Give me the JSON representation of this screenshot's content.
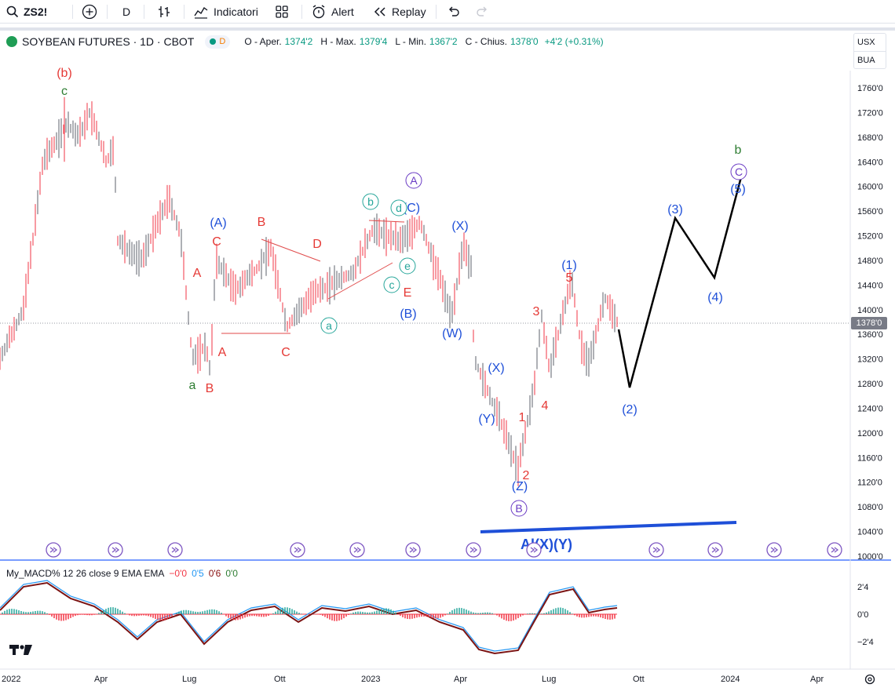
{
  "toolbar": {
    "symbol": "ZS2!",
    "interval": "D",
    "indicators": "Indicatori",
    "alert": "Alert",
    "replay": "Replay"
  },
  "legend": {
    "title": "SOYBEAN FUTURES · 1D · CBOT",
    "badge": "D",
    "o_label": "O - Aper.",
    "o": "1374'2",
    "h_label": "H - Max.",
    "h": "1379'4",
    "l_label": "L - Min.",
    "l": "1367'2",
    "c_label": "C - Chius.",
    "c": "1378'0",
    "change": "+4'2 (+0.31%)"
  },
  "unit": {
    "currency": "USX",
    "unit": "BUA"
  },
  "last_price": "1378'0",
  "price_axis": [
    "1760'0",
    "1720'0",
    "1680'0",
    "1640'0",
    "1600'0",
    "1560'0",
    "1520'0",
    "1480'0",
    "1440'0",
    "1400'0",
    "1360'0",
    "1320'0",
    "1280'0",
    "1240'0",
    "1200'0",
    "1160'0",
    "1120'0",
    "1080'0",
    "1040'0",
    "1000'0"
  ],
  "macd_axis": [
    "2'4",
    "0'0",
    "−2'4"
  ],
  "time_axis": [
    "2022",
    "Apr",
    "Lug",
    "Ott",
    "2023",
    "Apr",
    "Lug",
    "Ott",
    "2024",
    "Apr"
  ],
  "macd": {
    "name": "My_MACD% 12 26 close 9 EMA EMA",
    "v1": "−0'0",
    "v2": "0'5",
    "v3": "0'6",
    "v4": "0'0"
  },
  "colors": {
    "up": "#089981",
    "down": "#f23645",
    "bar": "#5d606b",
    "green": "#2e7d32",
    "red": "#e53935",
    "blue": "#1e4fd8",
    "purple": "#6a3bc4",
    "teal": "#26a69a"
  },
  "wave_labels": [
    {
      "t": "(b)",
      "c": "red"
    },
    {
      "t": "c",
      "c": "green"
    },
    {
      "t": "a",
      "c": "green"
    },
    {
      "t": "B",
      "c": "red"
    },
    {
      "t": "(A)",
      "c": "blue"
    },
    {
      "t": "C",
      "c": "red"
    },
    {
      "t": "A",
      "c": "red"
    },
    {
      "t": "A",
      "c": "red"
    },
    {
      "t": "B",
      "c": "red"
    },
    {
      "t": "D",
      "c": "red"
    },
    {
      "t": "C",
      "c": "red"
    },
    {
      "t": "E",
      "c": "red"
    },
    {
      "t": "(C)",
      "c": "blue"
    },
    {
      "t": "(B)",
      "c": "blue"
    },
    {
      "t": "(X)",
      "c": "blue"
    },
    {
      "t": "(W)",
      "c": "blue"
    },
    {
      "t": "(X)",
      "c": "blue"
    },
    {
      "t": "(Y)",
      "c": "blue"
    },
    {
      "t": "(Z)",
      "c": "blue"
    },
    {
      "t": "1",
      "c": "red"
    },
    {
      "t": "2",
      "c": "red"
    },
    {
      "t": "3",
      "c": "red"
    },
    {
      "t": "4",
      "c": "red"
    },
    {
      "t": "5",
      "c": "red"
    },
    {
      "t": "(1)",
      "c": "blue"
    },
    {
      "t": "(2)",
      "c": "blue"
    },
    {
      "t": "(3)",
      "c": "blue"
    },
    {
      "t": "(4)",
      "c": "blue"
    },
    {
      "t": "(5)",
      "c": "blue"
    },
    {
      "t": "b",
      "c": "green"
    },
    {
      "t": "Al(X)(Y)",
      "c": "blue"
    }
  ],
  "circle_labels": [
    {
      "t": "A",
      "c": "purple"
    },
    {
      "t": "B",
      "c": "purple"
    },
    {
      "t": "C",
      "c": "purple"
    },
    {
      "t": "a",
      "c": "teal"
    },
    {
      "t": "b",
      "c": "teal"
    },
    {
      "t": "c",
      "c": "teal"
    },
    {
      "t": "d",
      "c": "teal"
    },
    {
      "t": "e",
      "c": "teal"
    }
  ]
}
